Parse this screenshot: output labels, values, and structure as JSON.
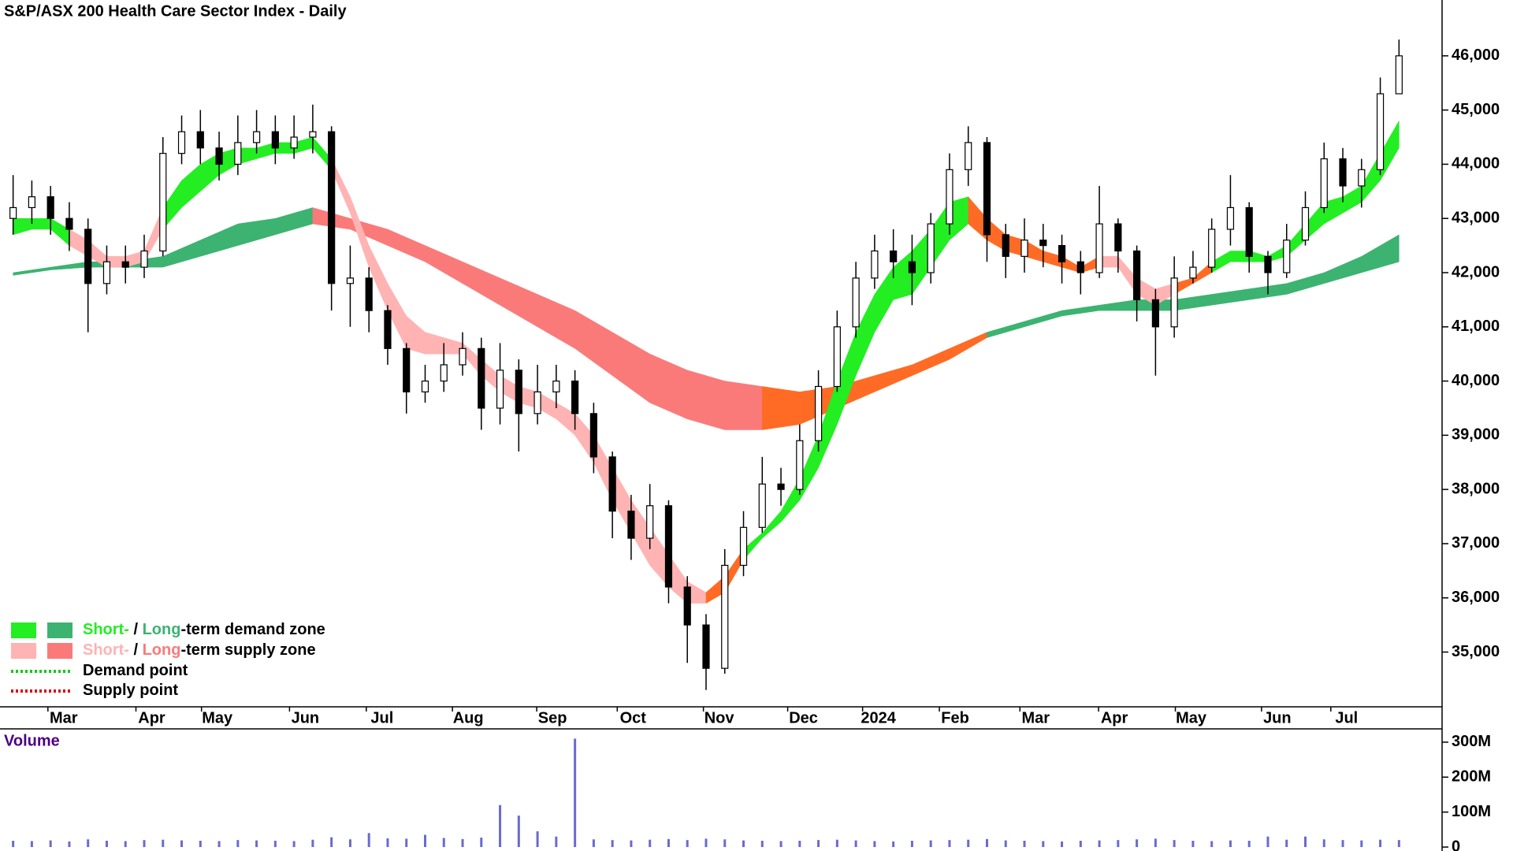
{
  "chart_data": [
    {
      "type": "candlestick",
      "title": "S&P/ASX 200 Health Care Sector Index - Daily",
      "x": [
        0,
        1,
        2,
        3,
        4,
        5,
        6,
        7,
        8,
        9,
        10,
        11,
        12,
        13,
        14,
        15,
        16,
        17,
        18,
        19,
        20,
        21,
        22,
        23,
        24,
        25,
        26,
        27,
        28,
        29,
        30,
        31,
        32,
        33,
        34,
        35,
        36,
        37,
        38,
        39,
        40,
        41,
        42,
        43,
        44,
        45,
        46,
        47,
        48,
        49,
        50,
        51,
        52,
        53,
        54,
        55,
        56,
        57,
        58,
        59,
        60,
        61,
        62,
        63,
        64,
        65,
        66,
        67,
        68,
        69,
        70,
        71,
        72,
        73,
        74
      ],
      "open": [
        43000,
        43200,
        43400,
        43000,
        42800,
        41800,
        42200,
        42100,
        42400,
        44200,
        44600,
        44300,
        44000,
        44400,
        44600,
        44300,
        44500,
        44600,
        41800,
        41900,
        41300,
        40600,
        39800,
        40000,
        40300,
        40600,
        39500,
        40200,
        39400,
        39800,
        40000,
        39400,
        38600,
        37600,
        37100,
        37700,
        36200,
        35500,
        34700,
        36600,
        37300,
        38100,
        38000,
        38900,
        39900,
        41000,
        41900,
        42400,
        42200,
        42000,
        42900,
        43900,
        44400,
        42700,
        42300,
        42600,
        42500,
        42200,
        42000,
        42900,
        42400,
        41500,
        41000,
        41900,
        42100,
        42800,
        43200,
        42300,
        42000,
        42600,
        43200,
        44100,
        43600,
        43900,
        45300
      ],
      "high": [
        43800,
        43700,
        43600,
        43300,
        43000,
        42500,
        42500,
        42700,
        44500,
        44900,
        45000,
        44600,
        44900,
        45000,
        44900,
        44900,
        45100,
        44700,
        42500,
        42100,
        41400,
        40700,
        40300,
        40700,
        40900,
        40800,
        40700,
        40400,
        40300,
        40300,
        40200,
        39600,
        38700,
        37900,
        38100,
        37800,
        36400,
        35700,
        36900,
        37600,
        38600,
        38400,
        39200,
        40200,
        41300,
        42200,
        42700,
        42800,
        42700,
        43100,
        44200,
        44700,
        44500,
        42900,
        43000,
        42900,
        42700,
        42400,
        43600,
        43000,
        42500,
        41700,
        42300,
        42400,
        43000,
        43800,
        43300,
        42400,
        42900,
        43500,
        44400,
        44300,
        44100,
        45600,
        46300
      ],
      "low": [
        42700,
        42900,
        42700,
        42400,
        40900,
        41600,
        41800,
        41900,
        42300,
        44000,
        44000,
        43700,
        43800,
        44200,
        44000,
        44100,
        44200,
        41300,
        41000,
        40900,
        40300,
        39400,
        39600,
        39800,
        40100,
        39100,
        39200,
        38700,
        39200,
        39500,
        39100,
        38300,
        37100,
        36700,
        36900,
        35900,
        34800,
        34300,
        34600,
        36400,
        37200,
        37700,
        37900,
        38700,
        39800,
        40800,
        41700,
        41900,
        41400,
        41800,
        42700,
        43600,
        42200,
        41900,
        42000,
        42100,
        41800,
        41600,
        41900,
        42000,
        41100,
        40100,
        40800,
        41800,
        42000,
        42500,
        42000,
        41600,
        41900,
        42500,
        43100,
        43300,
        43200,
        43800,
        45400
      ],
      "close": [
        43200,
        43400,
        43000,
        42800,
        41800,
        42200,
        42100,
        42400,
        44200,
        44600,
        44300,
        44000,
        44400,
        44600,
        44300,
        44500,
        44600,
        41800,
        41900,
        41300,
        40600,
        39800,
        40000,
        40300,
        40600,
        39500,
        40200,
        39400,
        39800,
        40000,
        39400,
        38600,
        37600,
        37100,
        37700,
        36200,
        35500,
        34700,
        36600,
        37300,
        38100,
        38000,
        38900,
        39900,
        41000,
        41900,
        42400,
        42200,
        42000,
        42900,
        43900,
        44400,
        42700,
        42300,
        42600,
        42500,
        42200,
        42000,
        42900,
        42400,
        41500,
        41000,
        41900,
        42100,
        42800,
        43200,
        42300,
        42000,
        42600,
        43200,
        44100,
        43600,
        43900,
        45300,
        46000
      ],
      "bands": [
        {
          "x": [
            0,
            2,
            4,
            6,
            8,
            10,
            12,
            14,
            16,
            18,
            20,
            22,
            24,
            26,
            28,
            30,
            32,
            34,
            36,
            38,
            40,
            42,
            44,
            46,
            48,
            50,
            52,
            54,
            56,
            58,
            60,
            62,
            64,
            66,
            68,
            70,
            72,
            74
          ],
          "upper": [
            42000,
            42100,
            42200,
            42200,
            42300,
            42600,
            42900,
            43000,
            43200,
            43000,
            42800,
            42500,
            42200,
            41900,
            41600,
            41300,
            40900,
            40500,
            40200,
            40000,
            39900,
            39800,
            39900,
            40100,
            40300,
            40600,
            40900,
            41100,
            41300,
            41400,
            41500,
            41500,
            41600,
            41700,
            41800,
            42000,
            42300,
            42700
          ],
          "lower": [
            41950,
            42050,
            42100,
            42100,
            42100,
            42300,
            42500,
            42700,
            42900,
            42800,
            42500,
            42200,
            41800,
            41400,
            41000,
            40600,
            40100,
            39600,
            39300,
            39100,
            39100,
            39200,
            39500,
            39800,
            40100,
            40400,
            40800,
            41000,
            41200,
            41300,
            41300,
            41300,
            41400,
            41500,
            41600,
            41800,
            42000,
            42200
          ],
          "zones": [
            {
              "from": 0,
              "to": 16,
              "color": "#3cb371"
            },
            {
              "from": 16,
              "to": 40,
              "color": "#fa7a7a"
            },
            {
              "from": 40,
              "to": 52,
              "color": "#ff6b24"
            },
            {
              "from": 52,
              "to": 74,
              "color": "#3cb371"
            }
          ]
        },
        {
          "x": [
            0,
            1,
            2,
            3,
            4,
            5,
            6,
            7,
            8,
            9,
            10,
            11,
            12,
            13,
            14,
            15,
            16,
            17,
            18,
            19,
            20,
            21,
            22,
            23,
            24,
            25,
            26,
            27,
            28,
            29,
            30,
            31,
            32,
            33,
            34,
            35,
            36,
            37,
            38,
            39,
            40,
            41,
            42,
            43,
            44,
            45,
            46,
            47,
            48,
            49,
            50,
            51,
            52,
            53,
            54,
            55,
            56,
            57,
            58,
            59,
            60,
            61,
            62,
            63,
            64,
            65,
            66,
            67,
            68,
            69,
            70,
            71,
            72,
            73,
            74
          ],
          "upper": [
            43000,
            43000,
            43000,
            42800,
            42600,
            42300,
            42300,
            42400,
            43200,
            43700,
            44000,
            44200,
            44300,
            44300,
            44400,
            44400,
            44500,
            44100,
            43400,
            42500,
            41800,
            41200,
            40900,
            40800,
            40700,
            40400,
            40100,
            39900,
            39800,
            39600,
            39400,
            39000,
            38400,
            37800,
            37300,
            36800,
            36300,
            36100,
            36400,
            36900,
            37200,
            37600,
            38200,
            39000,
            40000,
            40900,
            41600,
            42100,
            42400,
            42800,
            43300,
            43400,
            43000,
            42700,
            42600,
            42400,
            42300,
            42100,
            42300,
            42300,
            41900,
            41700,
            41800,
            41900,
            42200,
            42400,
            42400,
            42300,
            42500,
            42900,
            43300,
            43400,
            43600,
            44200,
            44800
          ],
          "lower": [
            42700,
            42800,
            42800,
            42500,
            42300,
            42100,
            42100,
            42200,
            42800,
            43200,
            43500,
            43800,
            44000,
            44100,
            44200,
            44200,
            44300,
            43900,
            43100,
            42100,
            41300,
            40600,
            40500,
            40500,
            40500,
            40100,
            39800,
            39600,
            39500,
            39300,
            39000,
            38500,
            37800,
            37200,
            36600,
            36200,
            35900,
            35900,
            36100,
            36700,
            37100,
            37400,
            37800,
            38400,
            39200,
            40100,
            40900,
            41500,
            41600,
            42100,
            42600,
            42900,
            42600,
            42400,
            42300,
            42200,
            42100,
            42000,
            42100,
            42100,
            41600,
            41400,
            41600,
            41800,
            42000,
            42200,
            42200,
            42200,
            42300,
            42600,
            42900,
            43100,
            43300,
            43700,
            44300
          ],
          "zones": [
            {
              "from": 0,
              "to": 3,
              "color": "#22ee22"
            },
            {
              "from": 3,
              "to": 8,
              "color": "#ffb3b3"
            },
            {
              "from": 8,
              "to": 17,
              "color": "#22ee22"
            },
            {
              "from": 17,
              "to": 37,
              "color": "#ffb3b3"
            },
            {
              "from": 37,
              "to": 39,
              "color": "#ff6b24"
            },
            {
              "from": 39,
              "to": 51,
              "color": "#22ee22"
            },
            {
              "from": 51,
              "to": 58,
              "color": "#ff6b24"
            },
            {
              "from": 58,
              "to": 62,
              "color": "#ffb3b3"
            },
            {
              "from": 62,
              "to": 64,
              "color": "#ff6b24"
            },
            {
              "from": 64,
              "to": 74,
              "color": "#22ee22"
            }
          ]
        }
      ],
      "xlim": [
        -0.7,
        76.3
      ],
      "xticks": [
        {
          "value": 2.7,
          "label": "Mar"
        },
        {
          "value": 7.4,
          "label": "Apr"
        },
        {
          "value": 10.9,
          "label": "May"
        },
        {
          "value": 15.6,
          "label": "Jun"
        },
        {
          "value": 19.7,
          "label": "Jul"
        },
        {
          "value": 24.3,
          "label": "Aug"
        },
        {
          "value": 28.8,
          "label": "Sep"
        },
        {
          "value": 33.1,
          "label": "Oct"
        },
        {
          "value": 37.7,
          "label": "Nov"
        },
        {
          "value": 42.2,
          "label": "Dec"
        },
        {
          "value": 46.2,
          "label": "2024"
        },
        {
          "value": 50.3,
          "label": "Feb"
        },
        {
          "value": 54.6,
          "label": "Mar"
        },
        {
          "value": 58.8,
          "label": "Apr"
        },
        {
          "value": 62.9,
          "label": "May"
        },
        {
          "value": 67.5,
          "label": "Jun"
        },
        {
          "value": 71.2,
          "label": "Jul"
        }
      ],
      "ylim": [
        33990,
        47030
      ],
      "yticks": [
        {
          "value": 35000,
          "label": "35,000"
        },
        {
          "value": 36000,
          "label": "36,000"
        },
        {
          "value": 37000,
          "label": "37,000"
        },
        {
          "value": 38000,
          "label": "38,000"
        },
        {
          "value": 39000,
          "label": "39,000"
        },
        {
          "value": 40000,
          "label": "40,000"
        },
        {
          "value": 41000,
          "label": "41,000"
        },
        {
          "value": 42000,
          "label": "42,000"
        },
        {
          "value": 43000,
          "label": "43,000"
        },
        {
          "value": 44000,
          "label": "44,000"
        },
        {
          "value": 45000,
          "label": "45,000"
        },
        {
          "value": 46000,
          "label": "46,000"
        }
      ],
      "legend": [
        {
          "parts": [
            "Short-",
            " / ",
            "Long",
            "-term demand zone"
          ],
          "swatches": [
            "#22ee22",
            "#3cb371"
          ]
        },
        {
          "parts": [
            "Short-",
            " / ",
            "Long",
            "-term supply zone"
          ],
          "swatches": [
            "#ffb3b3",
            "#fa7a7a"
          ]
        },
        {
          "parts": [
            "Demand point"
          ],
          "line": "#11cc11"
        },
        {
          "parts": [
            "Supply point"
          ],
          "line": "#dd0000"
        }
      ]
    },
    {
      "type": "bar",
      "title": "Volume",
      "x": [
        0,
        1,
        2,
        3,
        4,
        5,
        6,
        7,
        8,
        9,
        10,
        11,
        12,
        13,
        14,
        15,
        16,
        17,
        18,
        19,
        20,
        21,
        22,
        23,
        24,
        25,
        26,
        27,
        28,
        29,
        30,
        31,
        32,
        33,
        34,
        35,
        36,
        37,
        38,
        39,
        40,
        41,
        42,
        43,
        44,
        45,
        46,
        47,
        48,
        49,
        50,
        51,
        52,
        53,
        54,
        55,
        56,
        57,
        58,
        59,
        60,
        61,
        62,
        63,
        64,
        65,
        66,
        67,
        68,
        69,
        70,
        71,
        72,
        73,
        74
      ],
      "values": [
        18000000,
        17000000,
        19000000,
        16000000,
        22000000,
        18000000,
        17000000,
        20000000,
        21000000,
        19000000,
        18000000,
        17000000,
        20000000,
        19000000,
        18000000,
        17000000,
        21000000,
        28000000,
        22000000,
        40000000,
        25000000,
        24000000,
        35000000,
        26000000,
        23000000,
        27000000,
        120000000,
        90000000,
        45000000,
        30000000,
        310000000,
        22000000,
        20000000,
        19000000,
        21000000,
        23000000,
        20000000,
        24000000,
        22000000,
        19000000,
        18000000,
        17000000,
        18000000,
        20000000,
        21000000,
        19000000,
        17000000,
        16000000,
        18000000,
        19000000,
        20000000,
        21000000,
        23000000,
        19000000,
        18000000,
        17000000,
        16000000,
        18000000,
        19000000,
        20000000,
        22000000,
        24000000,
        20000000,
        18000000,
        17000000,
        19000000,
        18000000,
        30000000,
        21000000,
        30000000,
        22000000,
        20000000,
        19000000,
        21000000,
        20000000
      ],
      "color": "#6a6ad0",
      "xlim": [
        -0.7,
        76.3
      ],
      "ylim": [
        0,
        338000000
      ],
      "yticks": [
        0,
        {
          "value": 100000000,
          "label": "100M"
        },
        {
          "value": 200000000,
          "label": "200M"
        },
        {
          "value": 300000000,
          "label": "300M"
        }
      ]
    }
  ]
}
